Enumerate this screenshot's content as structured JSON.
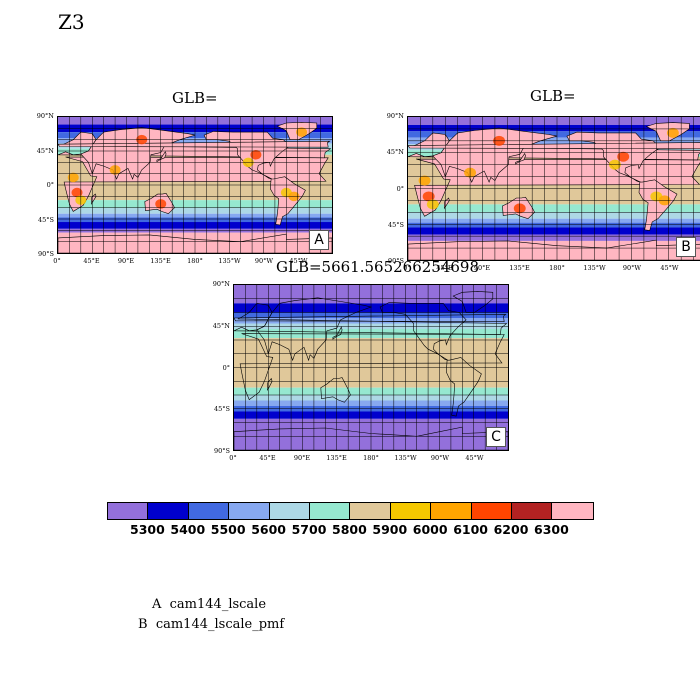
{
  "page": {
    "title": "Z3"
  },
  "axes": {
    "lat_labels": [
      "90°N",
      "45°N",
      "0°",
      "45°S",
      "90°S"
    ],
    "lon_labels": [
      "0°",
      "45°E",
      "90°E",
      "135°E",
      "180°",
      "135°W",
      "90°W",
      "45°W"
    ]
  },
  "panels": [
    {
      "title": "GLB=",
      "tag": "A",
      "style": "A"
    },
    {
      "title": "GLB=",
      "tag": "B",
      "style": "B"
    },
    {
      "title": "GLB=5661.565266254698",
      "tag": "C",
      "style": "C"
    }
  ],
  "colorbar": {
    "colors": [
      "#9370db",
      "#0000cd",
      "#4169e1",
      "#87a8f0",
      "#add8e6",
      "#96e8d0",
      "#e0c89a",
      "#f5c800",
      "#ffa500",
      "#ff4500",
      "#b22222",
      "#ffb6c1"
    ],
    "labels": [
      "5300",
      "5400",
      "5500",
      "5600",
      "5700",
      "5800",
      "5900",
      "6000",
      "6100",
      "6200",
      "6300"
    ]
  },
  "legend": [
    "A  cam144_lscale",
    "B  cam144_lscale_pmf"
  ]
}
